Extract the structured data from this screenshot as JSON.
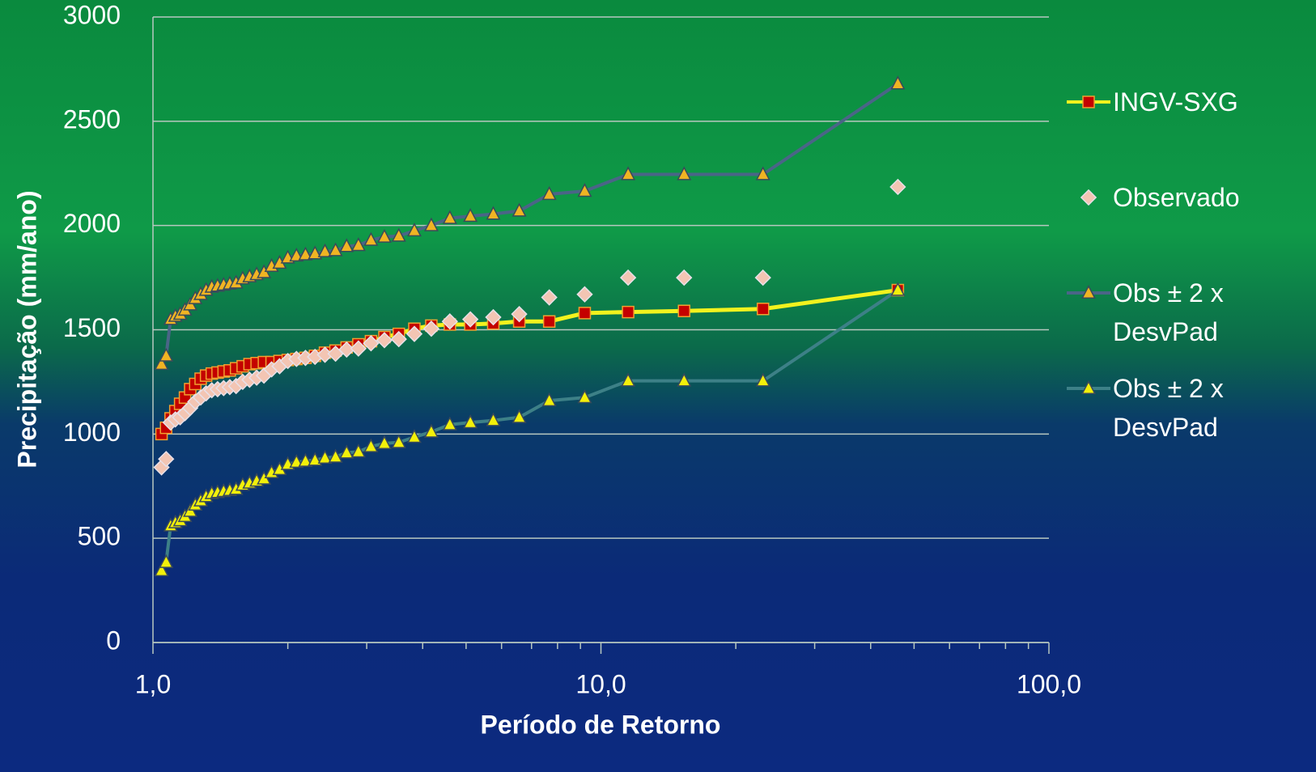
{
  "chart_data": {
    "type": "line",
    "x_label": "Período de Retorno",
    "y_label": "Precipitação (mm/ano)",
    "log_x": true,
    "grid": true,
    "legend": "right",
    "xlim": [
      1,
      100
    ],
    "xticks": [
      {
        "value": 1,
        "label": "1,0"
      },
      {
        "value": 10,
        "label": "10,0"
      },
      {
        "value": 100,
        "label": "100,0"
      }
    ],
    "x_minor_ticks": [
      2,
      3,
      4,
      5,
      6,
      7,
      8,
      9,
      20,
      30,
      40,
      50,
      60,
      70,
      80,
      90
    ],
    "ylim": [
      0,
      3000
    ],
    "yticks": [
      0,
      500,
      1000,
      1500,
      2000,
      2500,
      3000
    ],
    "x": [
      1.045,
      1.07,
      1.095,
      1.122,
      1.15,
      1.179,
      1.211,
      1.243,
      1.278,
      1.314,
      1.353,
      1.394,
      1.438,
      1.484,
      1.533,
      1.586,
      1.643,
      1.704,
      1.769,
      1.84,
      1.917,
      2.0,
      2.091,
      2.19,
      2.3,
      2.421,
      2.556,
      2.706,
      2.875,
      3.067,
      3.286,
      3.538,
      3.833,
      4.182,
      4.6,
      5.111,
      5.75,
      6.571,
      7.667,
      9.2,
      11.5,
      15.333,
      23,
      46
    ],
    "series": [
      {
        "name": "INGV-SXG",
        "color": "#f2f21e",
        "marker": "square",
        "marker_color": "#c40000",
        "line": true,
        "values": [
          1000,
          1030,
          1075,
          1110,
          1145,
          1175,
          1215,
          1240,
          1265,
          1280,
          1290,
          1295,
          1300,
          1305,
          1315,
          1325,
          1335,
          1340,
          1345,
          1345,
          1350,
          1355,
          1360,
          1365,
          1375,
          1390,
          1400,
          1415,
          1430,
          1445,
          1465,
          1480,
          1505,
          1520,
          1525,
          1525,
          1530,
          1540,
          1540,
          1580,
          1585,
          1590,
          1600,
          1690
        ]
      },
      {
        "name": "Observado",
        "color": "#f3c5b3",
        "marker": "diamond",
        "marker_color": "#f3c5b3",
        "line": false,
        "values": [
          840,
          880,
          1055,
          1070,
          1080,
          1100,
          1125,
          1155,
          1175,
          1195,
          1210,
          1215,
          1220,
          1225,
          1230,
          1250,
          1260,
          1270,
          1280,
          1310,
          1325,
          1350,
          1360,
          1365,
          1370,
          1380,
          1385,
          1405,
          1410,
          1435,
          1450,
          1455,
          1480,
          1505,
          1540,
          1550,
          1560,
          1575,
          1655,
          1670,
          1750,
          1750,
          1750,
          2185
        ]
      },
      {
        "name": "Obs ± 2 x DesvPad",
        "color": "#4a6587",
        "marker": "triangle",
        "marker_color": "#f0b423",
        "line": true,
        "values": [
          1335,
          1375,
          1550,
          1565,
          1575,
          1595,
          1620,
          1650,
          1670,
          1690,
          1705,
          1710,
          1715,
          1720,
          1725,
          1745,
          1755,
          1765,
          1775,
          1805,
          1820,
          1845,
          1855,
          1860,
          1865,
          1875,
          1880,
          1900,
          1905,
          1930,
          1945,
          1950,
          1975,
          2000,
          2035,
          2045,
          2055,
          2070,
          2150,
          2165,
          2245,
          2245,
          2245,
          2680
        ]
      },
      {
        "name": "Obs ± 2 x DesvPad",
        "color": "#3d8087",
        "marker": "triangle",
        "marker_color": "#f2f00a",
        "line": true,
        "values": [
          345,
          385,
          560,
          575,
          585,
          605,
          630,
          660,
          680,
          700,
          715,
          720,
          725,
          730,
          735,
          755,
          765,
          775,
          785,
          815,
          830,
          855,
          865,
          870,
          875,
          885,
          890,
          910,
          915,
          940,
          955,
          960,
          985,
          1010,
          1045,
          1055,
          1065,
          1080,
          1160,
          1175,
          1255,
          1255,
          1255,
          1690
        ]
      }
    ]
  }
}
